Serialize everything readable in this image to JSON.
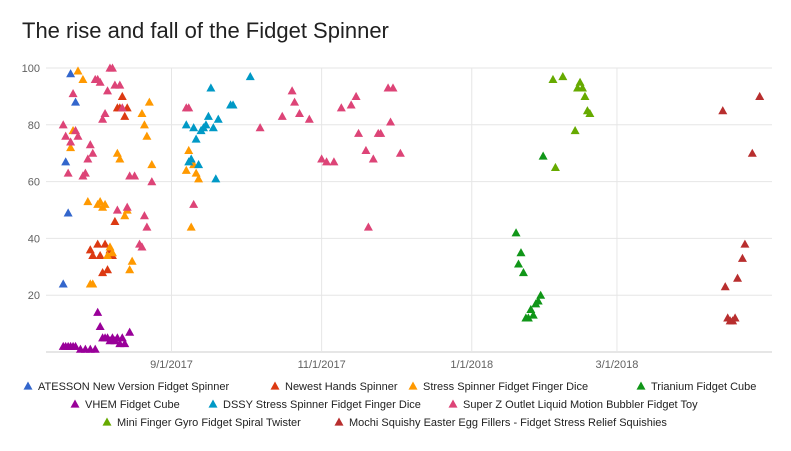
{
  "chart_data": {
    "type": "scatter",
    "title": "The rise and fall of the Fidget Spinner",
    "xlabel": "",
    "ylabel": "",
    "x_axis": {
      "type": "date",
      "ticks": [
        "9/1/2017",
        "11/1/2017",
        "1/1/2018",
        "3/1/2018"
      ],
      "range": [
        "2017-07-12",
        "2018-05-03"
      ]
    },
    "y_axis": {
      "ticks": [
        20,
        40,
        60,
        80,
        100
      ],
      "range": [
        0,
        100
      ]
    },
    "grid": true,
    "marker": "triangle",
    "legend_position": "bottom",
    "series": [
      {
        "name": "ATESSON New Version Fidget Spinner",
        "color": "#3366cc",
        "points": [
          [
            "2017-07-19",
            24
          ],
          [
            "2017-07-20",
            67
          ],
          [
            "2017-07-21",
            49
          ],
          [
            "2017-07-22",
            98
          ],
          [
            "2017-07-24",
            88
          ]
        ]
      },
      {
        "name": "Newest Hands Spinner",
        "color": "#dc3912",
        "points": [
          [
            "2017-07-30",
            36
          ],
          [
            "2017-07-31",
            34
          ],
          [
            "2017-08-02",
            38
          ],
          [
            "2017-08-03",
            34
          ],
          [
            "2017-08-04",
            28
          ],
          [
            "2017-08-05",
            38
          ],
          [
            "2017-08-06",
            29
          ],
          [
            "2017-08-07",
            36
          ],
          [
            "2017-08-08",
            34
          ],
          [
            "2017-08-09",
            46
          ],
          [
            "2017-08-10",
            86
          ],
          [
            "2017-08-11",
            86
          ],
          [
            "2017-08-12",
            90
          ],
          [
            "2017-08-13",
            83
          ],
          [
            "2017-08-14",
            86
          ]
        ]
      },
      {
        "name": "Stress Spinner Fidget Finger Dice",
        "color": "#ff9900",
        "points": [
          [
            "2017-07-22",
            72
          ],
          [
            "2017-07-23",
            78
          ],
          [
            "2017-07-25",
            99
          ],
          [
            "2017-07-27",
            96
          ],
          [
            "2017-07-29",
            53
          ],
          [
            "2017-07-30",
            24
          ],
          [
            "2017-07-31",
            24
          ],
          [
            "2017-08-02",
            52
          ],
          [
            "2017-08-03",
            53
          ],
          [
            "2017-08-04",
            51
          ],
          [
            "2017-08-05",
            52
          ],
          [
            "2017-08-06",
            34
          ],
          [
            "2017-08-07",
            37
          ],
          [
            "2017-08-08",
            35
          ],
          [
            "2017-08-10",
            70
          ],
          [
            "2017-08-11",
            68
          ],
          [
            "2017-08-13",
            48
          ],
          [
            "2017-08-14",
            50
          ],
          [
            "2017-08-15",
            29
          ],
          [
            "2017-08-16",
            32
          ],
          [
            "2017-08-20",
            84
          ],
          [
            "2017-08-21",
            80
          ],
          [
            "2017-08-22",
            76
          ],
          [
            "2017-08-23",
            88
          ],
          [
            "2017-08-24",
            66
          ],
          [
            "2017-09-07",
            64
          ],
          [
            "2017-09-08",
            71
          ],
          [
            "2017-09-09",
            44
          ],
          [
            "2017-09-10",
            66
          ],
          [
            "2017-09-11",
            63
          ],
          [
            "2017-09-12",
            61
          ]
        ]
      },
      {
        "name": "Trianium Fidget Cube",
        "color": "#109618",
        "points": [
          [
            "2018-01-19",
            42
          ],
          [
            "2018-01-20",
            31
          ],
          [
            "2018-01-21",
            35
          ],
          [
            "2018-01-22",
            28
          ],
          [
            "2018-01-23",
            12
          ],
          [
            "2018-01-24",
            12
          ],
          [
            "2018-01-25",
            15
          ],
          [
            "2018-01-26",
            13
          ],
          [
            "2018-01-27",
            17
          ],
          [
            "2018-01-28",
            18
          ],
          [
            "2018-01-29",
            20
          ],
          [
            "2018-01-30",
            69
          ]
        ]
      },
      {
        "name": "VHEM Fidget Cube",
        "color": "#990099",
        "points": [
          [
            "2017-07-19",
            2
          ],
          [
            "2017-07-20",
            2
          ],
          [
            "2017-07-21",
            2
          ],
          [
            "2017-07-22",
            2
          ],
          [
            "2017-07-23",
            2
          ],
          [
            "2017-07-24",
            2
          ],
          [
            "2017-07-26",
            1
          ],
          [
            "2017-07-28",
            1
          ],
          [
            "2017-07-30",
            1
          ],
          [
            "2017-08-01",
            1
          ],
          [
            "2017-08-02",
            14
          ],
          [
            "2017-08-03",
            9
          ],
          [
            "2017-08-04",
            5
          ],
          [
            "2017-08-05",
            5
          ],
          [
            "2017-08-06",
            5
          ],
          [
            "2017-08-07",
            4
          ],
          [
            "2017-08-08",
            5
          ],
          [
            "2017-08-09",
            4
          ],
          [
            "2017-08-10",
            5
          ],
          [
            "2017-08-11",
            3
          ],
          [
            "2017-08-12",
            5
          ],
          [
            "2017-08-13",
            3
          ],
          [
            "2017-08-15",
            7
          ]
        ]
      },
      {
        "name": "DSSY Stress Spinner Fidget Finger Dice",
        "color": "#0099c6",
        "points": [
          [
            "2017-09-07",
            80
          ],
          [
            "2017-09-08",
            67
          ],
          [
            "2017-09-09",
            68
          ],
          [
            "2017-09-10",
            79
          ],
          [
            "2017-09-11",
            75
          ],
          [
            "2017-09-12",
            66
          ],
          [
            "2017-09-13",
            78
          ],
          [
            "2017-09-14",
            79
          ],
          [
            "2017-09-15",
            80
          ],
          [
            "2017-09-16",
            83
          ],
          [
            "2017-09-17",
            93
          ],
          [
            "2017-09-18",
            79
          ],
          [
            "2017-09-19",
            61
          ],
          [
            "2017-09-20",
            82
          ],
          [
            "2017-09-25",
            87
          ],
          [
            "2017-09-26",
            87
          ],
          [
            "2017-10-03",
            97
          ]
        ]
      },
      {
        "name": "Super Z Outlet Liquid Motion Bubbler Fidget Toy",
        "color": "#dd4477",
        "points": [
          [
            "2017-07-19",
            80
          ],
          [
            "2017-07-20",
            76
          ],
          [
            "2017-07-21",
            63
          ],
          [
            "2017-07-22",
            74
          ],
          [
            "2017-07-23",
            91
          ],
          [
            "2017-07-24",
            78
          ],
          [
            "2017-07-25",
            76
          ],
          [
            "2017-07-27",
            62
          ],
          [
            "2017-07-28",
            63
          ],
          [
            "2017-07-29",
            68
          ],
          [
            "2017-07-30",
            73
          ],
          [
            "2017-07-31",
            70
          ],
          [
            "2017-08-01",
            96
          ],
          [
            "2017-08-02",
            96
          ],
          [
            "2017-08-03",
            95
          ],
          [
            "2017-08-04",
            82
          ],
          [
            "2017-08-05",
            84
          ],
          [
            "2017-08-06",
            92
          ],
          [
            "2017-08-07",
            100
          ],
          [
            "2017-08-08",
            100
          ],
          [
            "2017-08-09",
            94
          ],
          [
            "2017-08-10",
            50
          ],
          [
            "2017-08-11",
            94
          ],
          [
            "2017-08-12",
            86
          ],
          [
            "2017-08-14",
            51
          ],
          [
            "2017-08-15",
            62
          ],
          [
            "2017-08-17",
            62
          ],
          [
            "2017-08-19",
            38
          ],
          [
            "2017-08-20",
            37
          ],
          [
            "2017-08-21",
            48
          ],
          [
            "2017-08-22",
            44
          ],
          [
            "2017-08-24",
            60
          ],
          [
            "2017-09-07",
            86
          ],
          [
            "2017-09-08",
            86
          ],
          [
            "2017-09-10",
            52
          ],
          [
            "2017-10-07",
            79
          ],
          [
            "2017-10-16",
            83
          ],
          [
            "2017-10-20",
            92
          ],
          [
            "2017-10-21",
            88
          ],
          [
            "2017-10-23",
            84
          ],
          [
            "2017-10-27",
            82
          ],
          [
            "2017-11-01",
            68
          ],
          [
            "2017-11-03",
            67
          ],
          [
            "2017-11-06",
            67
          ],
          [
            "2017-11-09",
            86
          ],
          [
            "2017-11-13",
            87
          ],
          [
            "2017-11-15",
            90
          ],
          [
            "2017-11-16",
            77
          ],
          [
            "2017-11-19",
            71
          ],
          [
            "2017-11-20",
            44
          ],
          [
            "2017-11-22",
            68
          ],
          [
            "2017-11-24",
            77
          ],
          [
            "2017-11-25",
            77
          ],
          [
            "2017-11-28",
            93
          ],
          [
            "2017-11-29",
            81
          ],
          [
            "2017-11-30",
            93
          ],
          [
            "2017-12-03",
            70
          ]
        ]
      },
      {
        "name": "Mini Finger Gyro Fidget Spiral Twister",
        "color": "#66aa00",
        "points": [
          [
            "2018-02-04",
            65
          ],
          [
            "2018-02-03",
            96
          ],
          [
            "2018-02-07",
            97
          ],
          [
            "2018-02-12",
            78
          ],
          [
            "2018-02-13",
            93
          ],
          [
            "2018-02-14",
            95
          ],
          [
            "2018-02-15",
            93
          ],
          [
            "2018-02-16",
            90
          ],
          [
            "2018-02-17",
            85
          ],
          [
            "2018-02-18",
            84
          ]
        ]
      },
      {
        "name": "Mochi Squishy Easter Egg Fillers - Fidget Stress Relief Squishies",
        "color": "#b82e2e",
        "points": [
          [
            "2018-04-13",
            85
          ],
          [
            "2018-04-14",
            23
          ],
          [
            "2018-04-15",
            12
          ],
          [
            "2018-04-16",
            11
          ],
          [
            "2018-04-17",
            11
          ],
          [
            "2018-04-18",
            12
          ],
          [
            "2018-04-19",
            26
          ],
          [
            "2018-04-21",
            33
          ],
          [
            "2018-04-22",
            38
          ],
          [
            "2018-04-25",
            70
          ],
          [
            "2018-04-28",
            90
          ]
        ]
      }
    ]
  }
}
